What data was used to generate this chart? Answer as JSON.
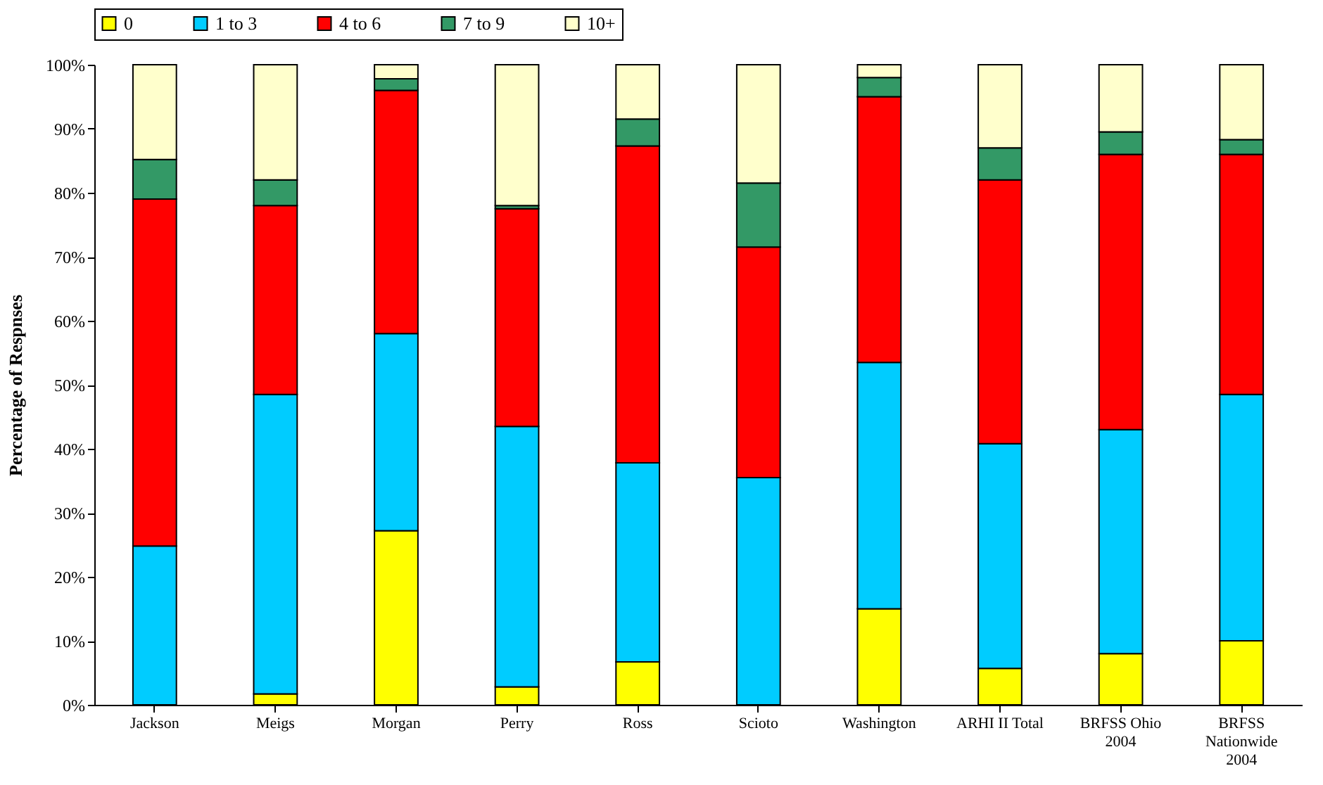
{
  "chart_data": {
    "type": "bar",
    "stacked": true,
    "ylabel": "Percentage of Respnses",
    "legend": "top",
    "grid": false,
    "categories": [
      "Jackson",
      "Meigs",
      "Morgan",
      "Perry",
      "Ross",
      "Scioto",
      "Washington",
      "ARHI II Total",
      "BRFSS Ohio 2004",
      "BRFSS Nationwide 2004"
    ],
    "ylim": [
      0,
      100
    ],
    "yticks": [
      {
        "value": 0,
        "label": "0%"
      },
      {
        "value": 10,
        "label": "10%"
      },
      {
        "value": 20,
        "label": "20%"
      },
      {
        "value": 30,
        "label": "30%"
      },
      {
        "value": 40,
        "label": "40%"
      },
      {
        "value": 50,
        "label": "50%"
      },
      {
        "value": 60,
        "label": "60%"
      },
      {
        "value": 70,
        "label": "70%"
      },
      {
        "value": 80,
        "label": "80%"
      },
      {
        "value": 90,
        "label": "90%"
      },
      {
        "value": 100,
        "label": "100%"
      }
    ],
    "series": [
      {
        "name": "0",
        "color": "#ffff00",
        "values": [
          0,
          1.7,
          27.2,
          2.8,
          6.7,
          0,
          15,
          5.7,
          8,
          10
        ]
      },
      {
        "name": "1 to 3",
        "color": "#00ccff",
        "values": [
          24.8,
          46.8,
          30.8,
          40.7,
          31.1,
          35.5,
          38.5,
          35.1,
          35,
          38.5
        ]
      },
      {
        "name": "4 to 6",
        "color": "#ff0000",
        "values": [
          54.2,
          29.5,
          38,
          34,
          49.5,
          36,
          41.5,
          41.2,
          43,
          37.5
        ]
      },
      {
        "name": "7 to 9",
        "color": "#339966",
        "values": [
          6.2,
          4,
          1.8,
          0.5,
          4.2,
          10,
          3,
          5,
          3.5,
          2.3
        ]
      },
      {
        "name": "10+",
        "color": "#ffffcc",
        "values": [
          14.8,
          18,
          2.2,
          22,
          8.5,
          18.5,
          2,
          13,
          10.5,
          11.7
        ]
      }
    ]
  }
}
